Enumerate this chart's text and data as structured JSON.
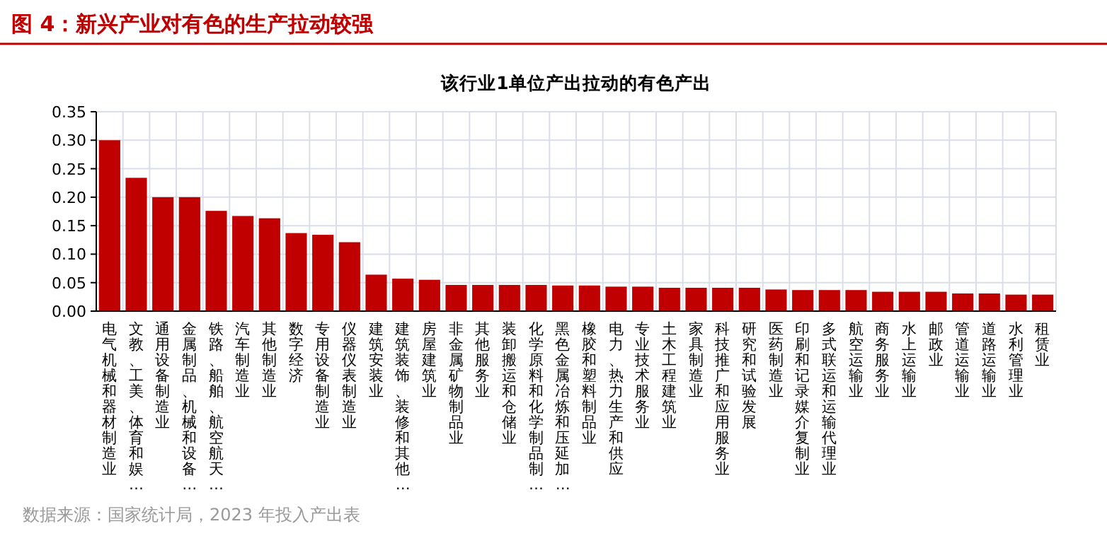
{
  "chart_data": {
    "type": "bar",
    "title": "图 4：新兴产业对有色的生产拉动较强",
    "subtitle": "该行业1单位产出拉动的有色产出",
    "categories": [
      "电气机械和器材制造业",
      "文教、工美、体育和娱…",
      "通用设备制造业",
      "金属制品、机械和设备…",
      "铁路、船舶、航空航天…",
      "汽车制造业",
      "其他制造业",
      "数字经济",
      "专用设备制造业",
      "仪器仪表制造业",
      "建筑安装业",
      "建筑装饰、装修和其他…",
      "房屋建筑业",
      "非金属矿物制品业",
      "其他服务业",
      "装卸搬运和仓储业",
      "化学原料和化学制品制…",
      "黑色金属冶炼和压延加…",
      "橡胶和塑料制品业",
      "电力、热力生产和供应",
      "专业技术服务业",
      "土木工程建筑业",
      "家具制造业",
      "科技推广和应用服务业",
      "研究和试验发展",
      "医药制造业",
      "印刷和记录媒介复制业",
      "多式联运和运输代理业",
      "航空运输业",
      "商务服务业",
      "水上运输业",
      "邮政业",
      "管道运输业",
      "道路运输业",
      "水利管理业",
      "租赁业"
    ],
    "values": [
      0.3,
      0.234,
      0.2,
      0.2,
      0.176,
      0.167,
      0.163,
      0.137,
      0.134,
      0.121,
      0.064,
      0.057,
      0.055,
      0.046,
      0.046,
      0.046,
      0.046,
      0.045,
      0.045,
      0.043,
      0.043,
      0.041,
      0.041,
      0.041,
      0.041,
      0.038,
      0.037,
      0.037,
      0.037,
      0.034,
      0.034,
      0.034,
      0.031,
      0.031,
      0.029,
      0.029
    ],
    "color": "#c00000",
    "ylim": [
      0,
      0.35
    ],
    "yticks": [
      {
        "value": 0,
        "label": "0.00"
      },
      {
        "value": 0.05,
        "label": "0.05"
      },
      {
        "value": 0.1,
        "label": "0.10"
      },
      {
        "value": 0.15,
        "label": "0.15"
      },
      {
        "value": 0.2,
        "label": "0.20"
      },
      {
        "value": 0.25,
        "label": "0.25"
      },
      {
        "value": 0.3,
        "label": "0.30"
      },
      {
        "value": 0.35,
        "label": "0.35"
      }
    ],
    "grid": true,
    "annotations": [
      "数据来源：国家统计局，2023 年投入产出表"
    ]
  }
}
